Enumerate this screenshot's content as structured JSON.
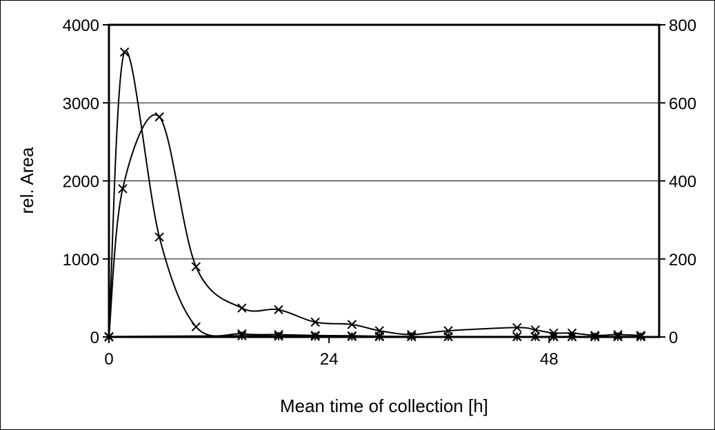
{
  "chart_data": {
    "type": "line",
    "title": "",
    "xlabel": "Mean time of collection [h]",
    "ylabel": "rel. Area",
    "y2label": "",
    "xlim": [
      0,
      60
    ],
    "ylim": [
      0,
      4000
    ],
    "y2lim": [
      0,
      800
    ],
    "x_ticks": [
      0,
      24,
      48
    ],
    "x_tick_labels": [
      "0",
      "24",
      "48"
    ],
    "y_ticks": [
      0,
      1000,
      2000,
      3000,
      4000
    ],
    "y_tick_labels": [
      "0",
      "1000",
      "2000",
      "3000",
      "4000"
    ],
    "y2_ticks": [
      0,
      200,
      400,
      600,
      800
    ],
    "y2_tick_labels": [
      "0",
      "200",
      "400",
      "600",
      "800"
    ],
    "grid": "horizontal",
    "legend": "none",
    "series": [
      {
        "axis": "left",
        "marker": "x",
        "color": "#000000",
        "points": [
          [
            0,
            0
          ],
          [
            1.5,
            1900
          ],
          [
            5.5,
            2820
          ],
          [
            9.5,
            900
          ],
          [
            14.5,
            370
          ],
          [
            18.5,
            350
          ],
          [
            22.5,
            190
          ],
          [
            26.5,
            160
          ],
          [
            29.5,
            80
          ],
          [
            33,
            30
          ],
          [
            37,
            80
          ],
          [
            44.5,
            120
          ],
          [
            46.5,
            90
          ],
          [
            48.5,
            50
          ],
          [
            50.5,
            50
          ],
          [
            53,
            20
          ],
          [
            55.5,
            30
          ],
          [
            58,
            20
          ]
        ]
      },
      {
        "axis": "left",
        "marker": "x",
        "color": "#000000",
        "points": [
          [
            0,
            0
          ],
          [
            1.7,
            3650
          ],
          [
            5.5,
            1280
          ],
          [
            9.5,
            130
          ],
          [
            14.5,
            40
          ],
          [
            18.5,
            30
          ],
          [
            22.5,
            20
          ],
          [
            26.5,
            15
          ],
          [
            29.5,
            10
          ],
          [
            33,
            5
          ],
          [
            37,
            5
          ],
          [
            44.5,
            5
          ],
          [
            46.5,
            5
          ],
          [
            48.5,
            5
          ],
          [
            50.5,
            5
          ],
          [
            53,
            5
          ],
          [
            55.5,
            5
          ],
          [
            58,
            5
          ]
        ]
      },
      {
        "axis": "left",
        "marker": "*",
        "color": "#000000",
        "points": [
          [
            0,
            5
          ],
          [
            14.5,
            15
          ],
          [
            18.5,
            10
          ],
          [
            22.5,
            8
          ],
          [
            26.5,
            6
          ],
          [
            29.5,
            4
          ],
          [
            33,
            3
          ],
          [
            37,
            3
          ],
          [
            44.5,
            3
          ],
          [
            46.5,
            3
          ],
          [
            48.5,
            3
          ],
          [
            50.5,
            3
          ],
          [
            53,
            3
          ],
          [
            55.5,
            3
          ],
          [
            58,
            3
          ]
        ]
      }
    ]
  }
}
